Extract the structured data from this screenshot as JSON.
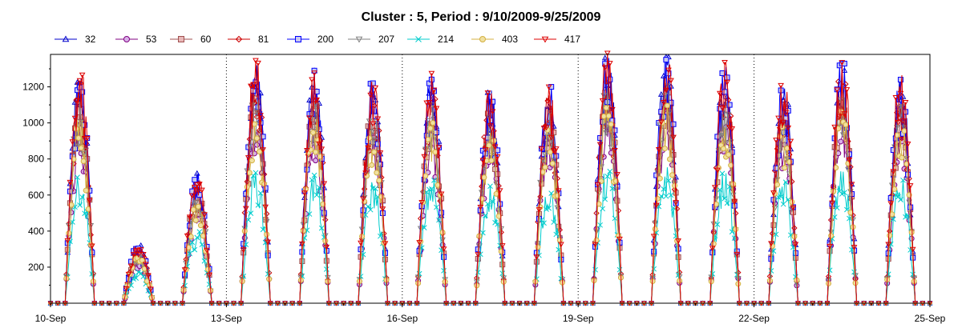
{
  "chart_data": {
    "type": "line",
    "title": "Cluster : 5, Period : 9/10/2009-9/25/2009",
    "xlabel": "",
    "ylabel": "",
    "x_range_days": [
      0,
      15
    ],
    "ylim": [
      0,
      1380
    ],
    "y_ticks": [
      200,
      400,
      600,
      800,
      1000,
      1200
    ],
    "x_ticks": [
      {
        "day": 0,
        "label": "10-Sep"
      },
      {
        "day": 3,
        "label": "13-Sep"
      },
      {
        "day": 6,
        "label": "16-Sep"
      },
      {
        "day": 9,
        "label": "19-Sep"
      },
      {
        "day": 12,
        "label": "22-Sep"
      },
      {
        "day": 15,
        "label": "25-Sep"
      }
    ],
    "daily_peaks": [
      {
        "date": "10-Sep",
        "peak": 1270
      },
      {
        "date": "11-Sep",
        "peak": 320
      },
      {
        "date": "12-Sep",
        "peak": 720
      },
      {
        "date": "13-Sep",
        "peak": 1320
      },
      {
        "date": "14-Sep",
        "peak": 1290
      },
      {
        "date": "15-Sep",
        "peak": 1220
      },
      {
        "date": "16-Sep",
        "peak": 1250
      },
      {
        "date": "17-Sep",
        "peak": 1180
      },
      {
        "date": "18-Sep",
        "peak": 1200
      },
      {
        "date": "19-Sep",
        "peak": 1360
      },
      {
        "date": "20-Sep",
        "peak": 1370
      },
      {
        "date": "21-Sep",
        "peak": 1310
      },
      {
        "date": "22-Sep",
        "peak": 1220
      },
      {
        "date": "23-Sep",
        "peak": 1330
      },
      {
        "date": "24-Sep",
        "peak": 1240
      }
    ],
    "series": [
      {
        "name": "32",
        "color": "#0000cc",
        "marker": "triangle-up",
        "peak_scale": 1.0,
        "phase": 0
      },
      {
        "name": "53",
        "color": "#800080",
        "marker": "circle",
        "peak_scale": 0.78,
        "phase": 1
      },
      {
        "name": "60",
        "color": "#a05050",
        "marker": "square",
        "peak_scale": 0.9,
        "phase": 2
      },
      {
        "name": "81",
        "color": "#cc0000",
        "marker": "diamond",
        "peak_scale": 0.96,
        "phase": 3
      },
      {
        "name": "200",
        "color": "#0000ff",
        "marker": "square",
        "peak_scale": 1.0,
        "phase": 4
      },
      {
        "name": "207",
        "color": "#808080",
        "marker": "triangle-down",
        "peak_scale": 0.88,
        "phase": 5
      },
      {
        "name": "214",
        "color": "#00cccc",
        "marker": "x",
        "peak_scale": 0.55,
        "phase": 6
      },
      {
        "name": "403",
        "color": "#d4b040",
        "marker": "circle",
        "peak_scale": 0.8,
        "phase": 7
      },
      {
        "name": "417",
        "color": "#dd0000",
        "marker": "triangle-down",
        "peak_scale": 1.02,
        "phase": 8
      }
    ],
    "grid": "vertical-dotted",
    "legend_position": "top-left"
  }
}
